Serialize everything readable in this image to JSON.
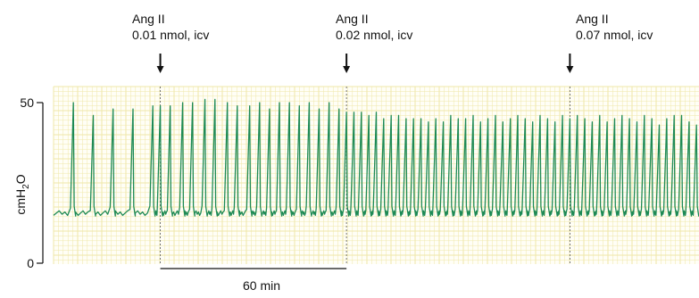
{
  "chart_data": {
    "type": "line",
    "title": "",
    "xlabel": "",
    "ylabel": {
      "base": "cmH",
      "sub": "2",
      "tail": "O"
    },
    "ylim": [
      0,
      50
    ],
    "yticks": [
      0,
      50
    ],
    "xlim": [
      0,
      260
    ],
    "grid": true,
    "grid_color": "#efe7a8",
    "trace_color": "#1e8a55",
    "baseline_value": 15.5,
    "annotations": [
      {
        "line1": "Ang II",
        "line2": "0.01 nmol, icv",
        "x": 43
      },
      {
        "line1": "Ang II",
        "line2": "0.02 nmol, icv",
        "x": 118
      },
      {
        "line1": "Ang II",
        "line2": "0.07 nmol, icv",
        "x": 208
      }
    ],
    "scale_bar": {
      "label": "60 min",
      "x_start": 43,
      "x_end": 118
    },
    "series": [
      {
        "x": [
          8,
          16,
          24,
          32,
          40,
          43,
          47,
          52,
          56,
          61,
          65,
          70,
          74,
          79,
          83,
          87,
          91,
          95,
          99,
          103,
          107,
          111,
          115,
          118,
          121,
          124,
          127,
          130,
          133,
          136,
          139,
          142,
          145,
          148,
          151,
          154,
          157,
          160,
          163,
          166,
          169,
          172,
          175,
          178,
          181,
          184,
          187,
          190,
          193,
          196,
          199,
          202,
          205,
          208,
          211,
          214,
          217,
          220,
          223,
          226,
          229,
          232,
          235,
          238,
          241,
          244,
          247,
          250,
          253,
          256,
          259
        ],
        "values": [
          50,
          46,
          48,
          48,
          49,
          49,
          49,
          50,
          50,
          51,
          51,
          50,
          49,
          49,
          50,
          48,
          50,
          50,
          49,
          50,
          48,
          50,
          48,
          47,
          47,
          47,
          46,
          47,
          45,
          46,
          46,
          45,
          45,
          45,
          44,
          45,
          44,
          46,
          45,
          45,
          46,
          44,
          45,
          46,
          44,
          45,
          46,
          45,
          44,
          46,
          45,
          44,
          46,
          45,
          46,
          45,
          44,
          46,
          44,
          45,
          46,
          45,
          44,
          46,
          45,
          43,
          45,
          46,
          46,
          44,
          43
        ]
      }
    ]
  }
}
